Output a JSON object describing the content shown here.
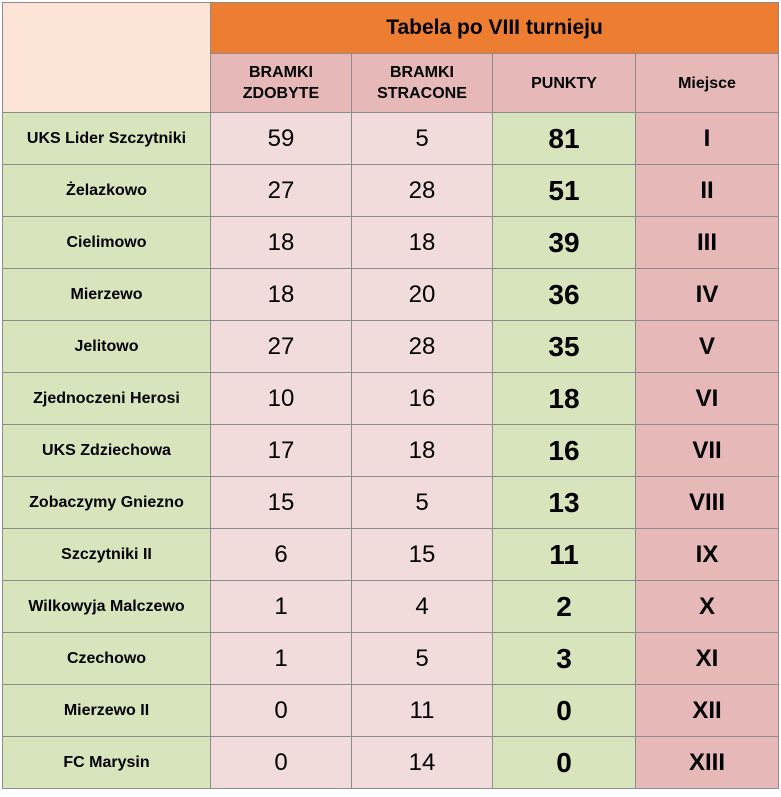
{
  "title": "Tabela po VIII turnieju",
  "headers": {
    "goals_scored": [
      "BRAMKI",
      "ZDOBYTE"
    ],
    "goals_conceded": [
      "BRAMKI",
      "STRACONE"
    ],
    "points": "PUNKTY",
    "place": "Miejsce"
  },
  "rows": [
    {
      "team": "UKS Lider Szczytniki",
      "scored": "59",
      "conceded": "5",
      "points": "81",
      "place": "I"
    },
    {
      "team": "Żelazkowo",
      "scored": "27",
      "conceded": "28",
      "points": "51",
      "place": "II"
    },
    {
      "team": "Cielimowo",
      "scored": "18",
      "conceded": "18",
      "points": "39",
      "place": "III"
    },
    {
      "team": "Mierzewo",
      "scored": "18",
      "conceded": "20",
      "points": "36",
      "place": "IV"
    },
    {
      "team": "Jelitowo",
      "scored": "27",
      "conceded": "28",
      "points": "35",
      "place": "V"
    },
    {
      "team": "Zjednoczeni Herosi",
      "scored": "10",
      "conceded": "16",
      "points": "18",
      "place": "VI"
    },
    {
      "team": "UKS Zdziechowa",
      "scored": "17",
      "conceded": "18",
      "points": "16",
      "place": "VII"
    },
    {
      "team": "Zobaczymy Gniezno",
      "scored": "15",
      "conceded": "5",
      "points": "13",
      "place": "VIII"
    },
    {
      "team": "Szczytniki II",
      "scored": "6",
      "conceded": "15",
      "points": "11",
      "place": "IX"
    },
    {
      "team": "Wilkowyja Malczewo",
      "scored": "1",
      "conceded": "4",
      "points": "2",
      "place": "X"
    },
    {
      "team": "Czechowo",
      "scored": "1",
      "conceded": "5",
      "points": "3",
      "place": "XI"
    },
    {
      "team": "Mierzewo II",
      "scored": "0",
      "conceded": "11",
      "points": "0",
      "place": "XII"
    },
    {
      "team": "FC Marysin",
      "scored": "0",
      "conceded": "14",
      "points": "0",
      "place": "XIII"
    }
  ],
  "colors": {
    "title_bg": "#ed7d31",
    "corner_bg": "#fce4d6",
    "header_bg": "#e6b8b7",
    "team_bg": "#d8e4bc",
    "goals_bg": "#f2dcdb",
    "points_bg": "#d8e4bc",
    "place_bg": "#e6b8b7"
  }
}
